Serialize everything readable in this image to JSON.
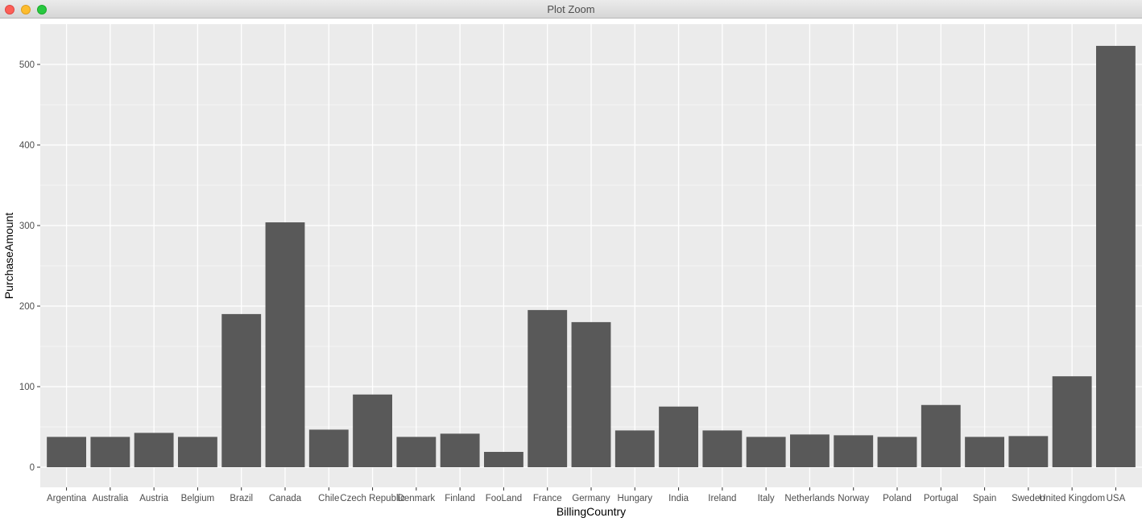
{
  "window": {
    "title": "Plot Zoom"
  },
  "colors": {
    "panel_background": "#ebebeb",
    "grid": "#ffffff",
    "bar_fill": "#595959",
    "tick_text": "#4d4d4d",
    "axis_title": "#000000"
  },
  "chart_data": {
    "type": "bar",
    "xlabel": "BillingCountry",
    "ylabel": "PurchaseAmount",
    "ylim": [
      -25,
      550
    ],
    "yticks": [
      0,
      100,
      200,
      300,
      400,
      500
    ],
    "grid": true,
    "legend": "none",
    "categories": [
      "Argentina",
      "Australia",
      "Austria",
      "Belgium",
      "Brazil",
      "Canada",
      "Chile",
      "Czech Republic",
      "Denmark",
      "Finland",
      "FooLand",
      "France",
      "Germany",
      "Hungary",
      "India",
      "Ireland",
      "Italy",
      "Netherlands",
      "Norway",
      "Poland",
      "Portugal",
      "Spain",
      "Sweden",
      "United Kingdom",
      "USA"
    ],
    "values": [
      37.62,
      37.62,
      42.62,
      37.62,
      190.1,
      303.96,
      46.62,
      90.24,
      37.62,
      41.62,
      19,
      195.1,
      180.1,
      45.62,
      75.26,
      45.62,
      37.62,
      40.62,
      39.62,
      37.62,
      77.24,
      37.62,
      38.62,
      112.86,
      523.06
    ]
  }
}
